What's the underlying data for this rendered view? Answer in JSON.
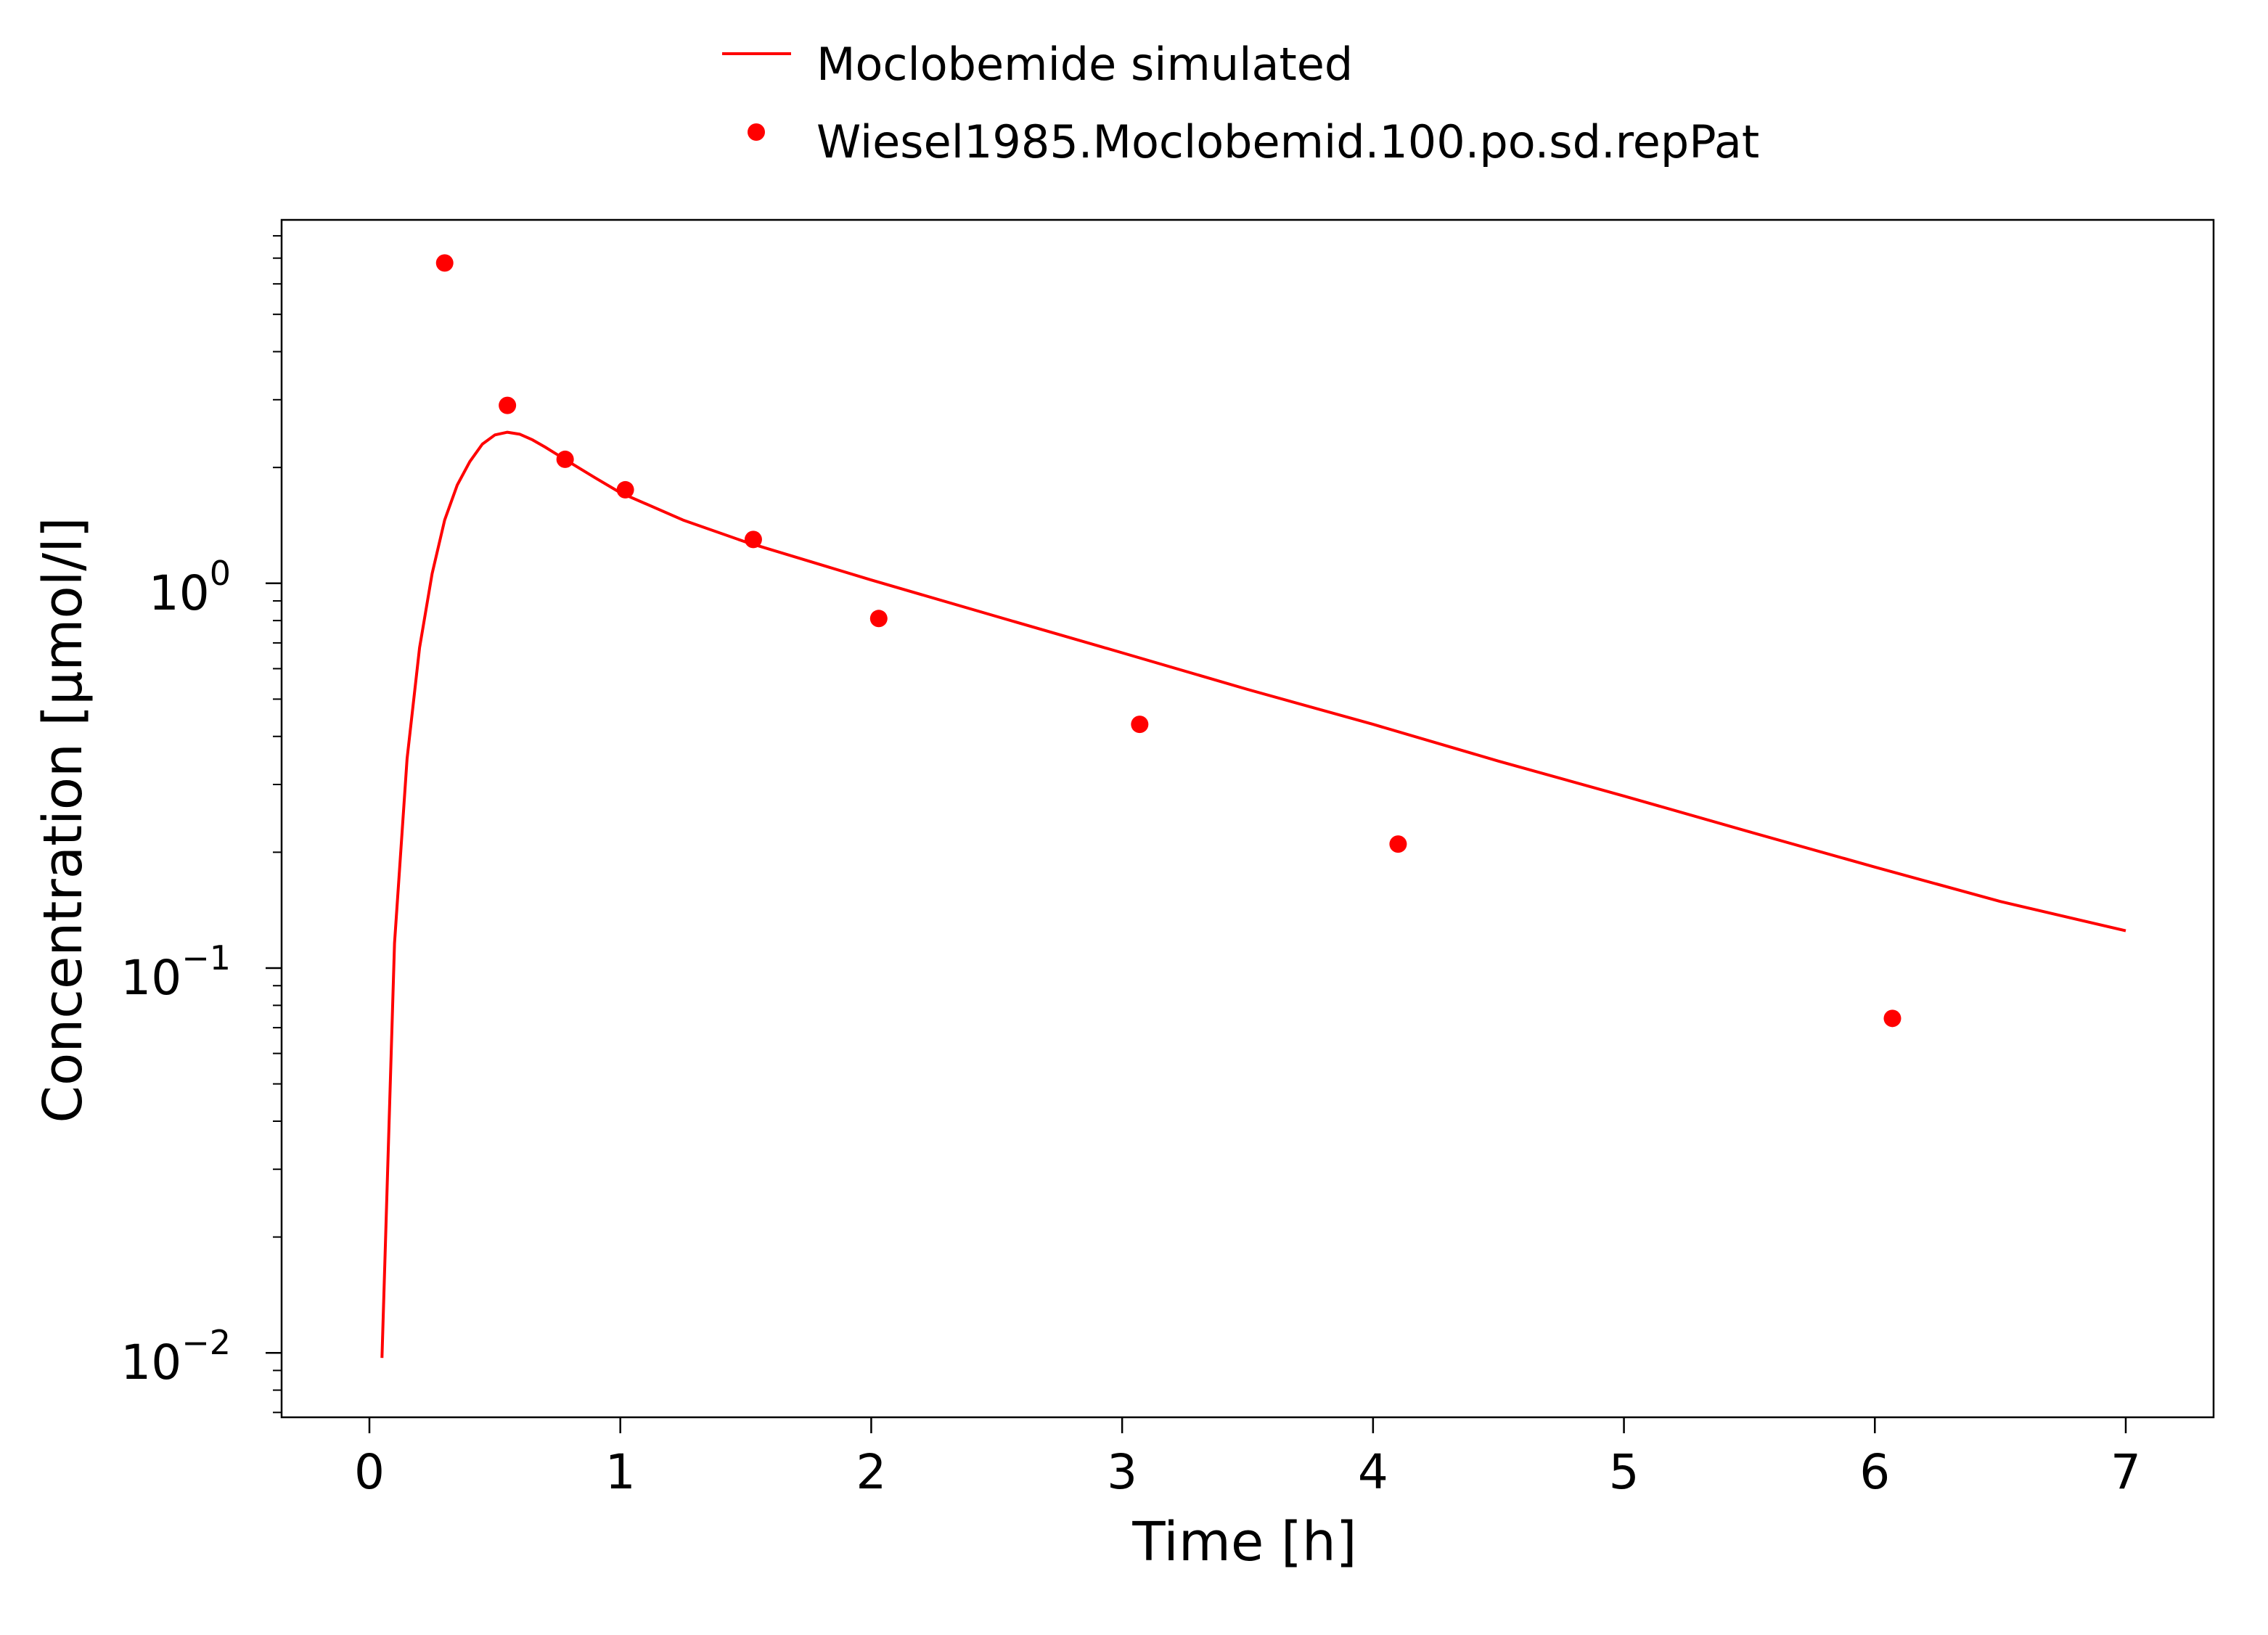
{
  "chart_data": {
    "type": "line",
    "xlabel": "Time [h]",
    "ylabel": "Concentration [µmol/l]",
    "x_scale": "linear",
    "y_scale": "log",
    "xlim": [
      -0.35,
      7.35
    ],
    "ylim": [
      0.0068,
      8.8
    ],
    "x_ticks": [
      0,
      1,
      2,
      3,
      4,
      5,
      6,
      7
    ],
    "x_tick_labels": [
      "0",
      "1",
      "2",
      "3",
      "4",
      "5",
      "6",
      "7"
    ],
    "y_ticks": [
      {
        "value": 0.01,
        "base": "10",
        "exponent": "−2"
      },
      {
        "value": 0.1,
        "base": "10",
        "exponent": "−1"
      },
      {
        "value": 1,
        "base": "10",
        "exponent": "0"
      }
    ],
    "grid": false,
    "legend_position": "top-center",
    "series": [
      {
        "name": "Moclobemide simulated",
        "kind": "line",
        "color": "#ff0000",
        "x": [
          0.05,
          0.1,
          0.15,
          0.2,
          0.25,
          0.3,
          0.35,
          0.4,
          0.45,
          0.5,
          0.55,
          0.6,
          0.65,
          0.7,
          0.8,
          0.9,
          1.0,
          1.25,
          1.5,
          2.0,
          2.5,
          3.0,
          3.5,
          4.0,
          4.5,
          5.0,
          5.5,
          6.0,
          6.5,
          7.0
        ],
        "y": [
          0.0097,
          0.116,
          0.35,
          0.68,
          1.06,
          1.46,
          1.8,
          2.07,
          2.3,
          2.43,
          2.47,
          2.44,
          2.36,
          2.26,
          2.06,
          1.88,
          1.72,
          1.46,
          1.28,
          1.02,
          0.82,
          0.66,
          0.53,
          0.43,
          0.345,
          0.28,
          0.226,
          0.183,
          0.149,
          0.125
        ]
      },
      {
        "name": "Wiesel1985.Moclobemid.100.po.sd.repPat",
        "kind": "scatter",
        "color": "#ff0000",
        "x": [
          0.3,
          0.55,
          0.78,
          1.02,
          1.53,
          2.03,
          3.07,
          4.1,
          6.07
        ],
        "y": [
          6.8,
          2.9,
          2.1,
          1.75,
          1.3,
          0.81,
          0.43,
          0.21,
          0.074
        ]
      }
    ]
  }
}
